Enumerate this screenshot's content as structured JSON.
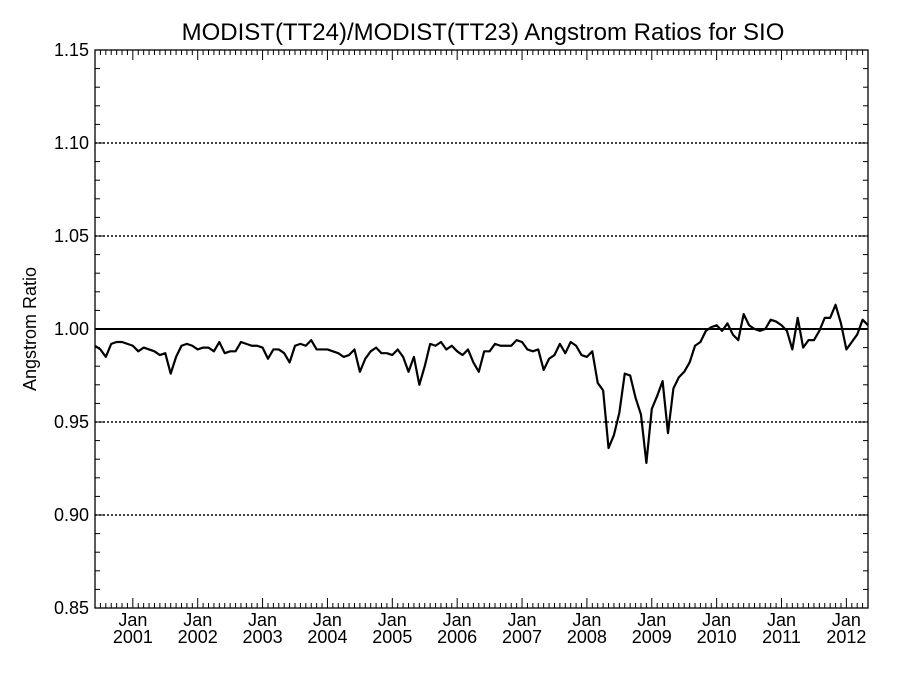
{
  "chart_data": {
    "type": "line",
    "title": "MODIST(TT24)/MODIST(TT23)  Angstrom Ratios for SIO",
    "xlabel": "",
    "ylabel": "Angstrom Ratio",
    "xlim": [
      "2000-06",
      "2012-05"
    ],
    "ylim": [
      0.85,
      1.15
    ],
    "y_ticks": [
      "0.85",
      "0.90",
      "0.95",
      "1.00",
      "1.05",
      "1.10",
      "1.15"
    ],
    "x_ticks": [
      {
        "month": "Jan",
        "year": "2001",
        "date": "2001-01"
      },
      {
        "month": "Jan",
        "year": "2002",
        "date": "2002-01"
      },
      {
        "month": "Jan",
        "year": "2003",
        "date": "2003-01"
      },
      {
        "month": "Jan",
        "year": "2004",
        "date": "2004-01"
      },
      {
        "month": "Jan",
        "year": "2005",
        "date": "2005-01"
      },
      {
        "month": "Jan",
        "year": "2006",
        "date": "2006-01"
      },
      {
        "month": "Jan",
        "year": "2007",
        "date": "2007-01"
      },
      {
        "month": "Jan",
        "year": "2008",
        "date": "2008-01"
      },
      {
        "month": "Jan",
        "year": "2009",
        "date": "2009-01"
      },
      {
        "month": "Jan",
        "year": "2010",
        "date": "2010-01"
      },
      {
        "month": "Jan",
        "year": "2011",
        "date": "2011-01"
      },
      {
        "month": "Jan",
        "year": "2012",
        "date": "2012-01"
      }
    ],
    "reference_line": 1.0,
    "grid": "horizontal dotted",
    "series": [
      {
        "x": [
          "2000-06",
          "2000-07",
          "2000-08",
          "2000-09",
          "2000-10",
          "2000-11",
          "2000-12",
          "2001-01",
          "2001-02",
          "2001-03",
          "2001-04",
          "2001-05",
          "2001-06",
          "2001-07",
          "2001-08",
          "2001-09",
          "2001-10",
          "2001-11",
          "2001-12",
          "2002-01",
          "2002-02",
          "2002-03",
          "2002-04",
          "2002-05",
          "2002-06",
          "2002-07",
          "2002-08",
          "2002-09",
          "2002-10",
          "2002-11",
          "2002-12",
          "2003-01",
          "2003-02",
          "2003-03",
          "2003-04",
          "2003-05",
          "2003-06",
          "2003-07",
          "2003-08",
          "2003-09",
          "2003-10",
          "2003-11",
          "2003-12",
          "2004-01",
          "2004-02",
          "2004-03",
          "2004-04",
          "2004-05",
          "2004-06",
          "2004-07",
          "2004-08",
          "2004-09",
          "2004-10",
          "2004-11",
          "2004-12",
          "2005-01",
          "2005-02",
          "2005-03",
          "2005-04",
          "2005-05",
          "2005-06",
          "2005-07",
          "2005-08",
          "2005-09",
          "2005-10",
          "2005-11",
          "2005-12",
          "2006-01",
          "2006-02",
          "2006-03",
          "2006-04",
          "2006-05",
          "2006-06",
          "2006-07",
          "2006-08",
          "2006-09",
          "2006-10",
          "2006-11",
          "2006-12",
          "2007-01",
          "2007-02",
          "2007-03",
          "2007-04",
          "2007-05",
          "2007-06",
          "2007-07",
          "2007-08",
          "2007-09",
          "2007-10",
          "2007-11",
          "2007-12",
          "2008-01",
          "2008-02",
          "2008-03",
          "2008-04",
          "2008-05",
          "2008-06",
          "2008-07",
          "2008-08",
          "2008-09",
          "2008-10",
          "2008-11",
          "2008-12",
          "2009-01",
          "2009-02",
          "2009-03",
          "2009-04",
          "2009-05",
          "2009-06",
          "2009-07",
          "2009-08",
          "2009-09",
          "2009-10",
          "2009-11",
          "2009-12",
          "2010-01",
          "2010-02",
          "2010-03",
          "2010-04",
          "2010-05",
          "2010-06",
          "2010-07",
          "2010-08",
          "2010-09",
          "2010-10",
          "2010-11",
          "2010-12",
          "2011-01",
          "2011-02",
          "2011-03",
          "2011-04",
          "2011-05",
          "2011-06",
          "2011-07",
          "2011-08",
          "2011-09",
          "2011-10",
          "2011-11",
          "2011-12",
          "2012-01",
          "2012-02",
          "2012-03",
          "2012-04",
          "2012-05"
        ],
        "values": [
          0.991,
          0.989,
          0.985,
          0.992,
          0.993,
          0.993,
          0.992,
          0.991,
          0.988,
          0.99,
          0.989,
          0.988,
          0.986,
          0.987,
          0.976,
          0.985,
          0.991,
          0.992,
          0.991,
          0.989,
          0.99,
          0.99,
          0.988,
          0.993,
          0.987,
          0.988,
          0.988,
          0.993,
          0.992,
          0.991,
          0.991,
          0.99,
          0.984,
          0.989,
          0.989,
          0.987,
          0.982,
          0.991,
          0.992,
          0.991,
          0.994,
          0.989,
          0.989,
          0.989,
          0.988,
          0.987,
          0.985,
          0.986,
          0.989,
          0.977,
          0.984,
          0.988,
          0.99,
          0.987,
          0.987,
          0.986,
          0.989,
          0.985,
          0.977,
          0.985,
          0.97,
          0.98,
          0.992,
          0.991,
          0.993,
          0.989,
          0.991,
          0.988,
          0.986,
          0.989,
          0.982,
          0.977,
          0.988,
          0.988,
          0.992,
          0.991,
          0.991,
          0.991,
          0.994,
          0.993,
          0.989,
          0.988,
          0.989,
          0.978,
          0.984,
          0.986,
          0.992,
          0.987,
          0.993,
          0.991,
          0.986,
          0.985,
          0.988,
          0.971,
          0.967,
          0.936,
          0.943,
          0.955,
          0.976,
          0.975,
          0.963,
          0.954,
          0.928,
          0.957,
          0.964,
          0.972,
          0.944,
          0.968,
          0.974,
          0.977,
          0.982,
          0.991,
          0.993,
          0.999,
          1.001,
          1.002,
          0.999,
          1.003,
          0.997,
          0.994,
          1.008,
          1.002,
          1.0,
          0.999,
          1.0,
          1.005,
          1.004,
          1.002,
          0.999,
          0.989,
          1.006,
          0.99,
          0.994,
          0.994,
          0.999,
          1.006,
          1.006,
          1.013,
          1.003,
          0.989,
          0.993,
          0.997,
          1.005,
          1.002
        ]
      }
    ]
  }
}
